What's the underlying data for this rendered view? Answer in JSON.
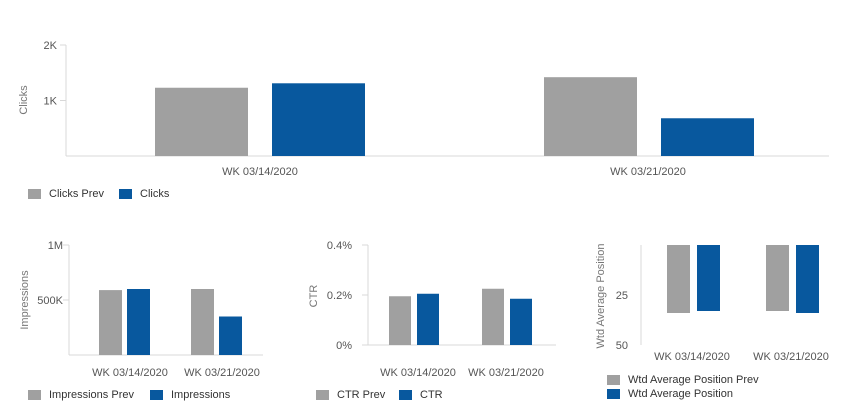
{
  "colors": {
    "prev": "#a0a0a0",
    "current": "#08589e",
    "axis": "#d8d8d8",
    "text": "#555555"
  },
  "chart_data": [
    {
      "type": "bar",
      "xlabel": "",
      "ylabel": "Clicks",
      "ylim": [
        0,
        2000
      ],
      "yticks": [
        1000,
        2000
      ],
      "ytick_labels": [
        "1K",
        "2K"
      ],
      "categories": [
        "WK 03/14/2020",
        "WK 03/21/2020"
      ],
      "series": [
        {
          "name": "Clicks Prev",
          "values": [
            1230,
            1420
          ]
        },
        {
          "name": "Clicks",
          "values": [
            1310,
            680
          ]
        }
      ],
      "legend_position": "bottom-left"
    },
    {
      "type": "bar",
      "xlabel": "",
      "ylabel": "Impressions",
      "ylim": [
        0,
        1000000
      ],
      "yticks": [
        500000,
        1000000
      ],
      "ytick_labels": [
        "500K",
        "1M"
      ],
      "categories": [
        "WK 03/14/2020",
        "WK 03/21/2020"
      ],
      "series": [
        {
          "name": "Impressions Prev",
          "values": [
            590000,
            600000
          ]
        },
        {
          "name": "Impressions",
          "values": [
            600000,
            350000
          ]
        }
      ],
      "legend_position": "bottom-left"
    },
    {
      "type": "bar",
      "xlabel": "",
      "ylabel": "CTR",
      "ylim": [
        0,
        0.4
      ],
      "yticks": [
        0,
        0.2,
        0.4
      ],
      "ytick_labels": [
        "0%",
        "0.2%",
        "0.4%"
      ],
      "categories": [
        "WK 03/14/2020",
        "WK 03/21/2020"
      ],
      "series": [
        {
          "name": "CTR Prev",
          "values": [
            0.195,
            0.225
          ]
        },
        {
          "name": "CTR",
          "values": [
            0.205,
            0.185
          ]
        }
      ],
      "legend_position": "bottom-left"
    },
    {
      "type": "bar",
      "xlabel": "",
      "ylabel": "Wtd Average Position",
      "ylim": [
        0,
        50
      ],
      "y_inverted": true,
      "yticks": [
        25,
        50
      ],
      "ytick_labels": [
        "25",
        "50"
      ],
      "categories": [
        "WK 03/14/2020",
        "WK 03/21/2020"
      ],
      "series": [
        {
          "name": "Wtd Average Position Prev",
          "values": [
            34,
            33
          ]
        },
        {
          "name": "Wtd Average Position",
          "values": [
            33,
            34
          ]
        }
      ],
      "legend_position": "bottom-left"
    }
  ]
}
